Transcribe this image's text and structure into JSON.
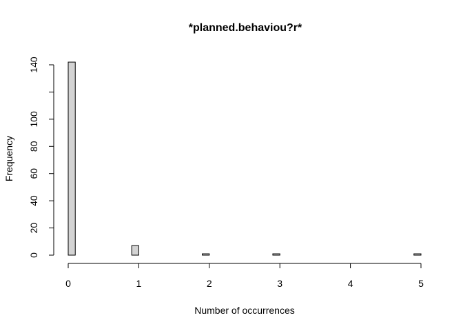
{
  "chart_data": {
    "type": "bar",
    "title": "*planned.behaviou?r*",
    "xlabel": "Number of occurrences",
    "ylabel": "Frequency",
    "xlim": [
      0,
      5
    ],
    "ylim": [
      0,
      140
    ],
    "bin_width": 0.1,
    "x_ticks": [
      0,
      1,
      2,
      3,
      4,
      5
    ],
    "y_ticks": [
      0,
      20,
      40,
      60,
      80,
      100,
      120,
      140
    ],
    "y_tick_labels": [
      "0",
      "20",
      "40",
      "60",
      "80",
      "100",
      "",
      "140"
    ],
    "x": [
      0.0,
      0.1,
      0.2,
      0.3,
      0.4,
      0.5,
      0.6,
      0.7,
      0.8,
      0.9,
      1.0,
      1.1,
      1.2,
      1.3,
      1.4,
      1.5,
      1.6,
      1.7,
      1.8,
      1.9,
      2.0,
      2.1,
      2.2,
      2.3,
      2.4,
      2.5,
      2.6,
      2.7,
      2.8,
      2.9,
      3.0,
      3.1,
      3.2,
      3.3,
      3.4,
      3.5,
      3.6,
      3.7,
      3.8,
      3.9,
      4.0,
      4.1,
      4.2,
      4.3,
      4.4,
      4.5,
      4.6,
      4.7,
      4.8,
      4.9
    ],
    "values": [
      142,
      0,
      0,
      0,
      0,
      0,
      0,
      0,
      0,
      7,
      0,
      0,
      0,
      0,
      0,
      0,
      0,
      0,
      0,
      1,
      0,
      0,
      0,
      0,
      0,
      0,
      0,
      0,
      0,
      1,
      0,
      0,
      0,
      0,
      0,
      0,
      0,
      0,
      0,
      0,
      0,
      0,
      0,
      0,
      0,
      0,
      0,
      0,
      0,
      1
    ],
    "grid": false,
    "colors": {
      "bar_fill": "#d3d3d3",
      "bar_stroke": "#000000"
    }
  }
}
